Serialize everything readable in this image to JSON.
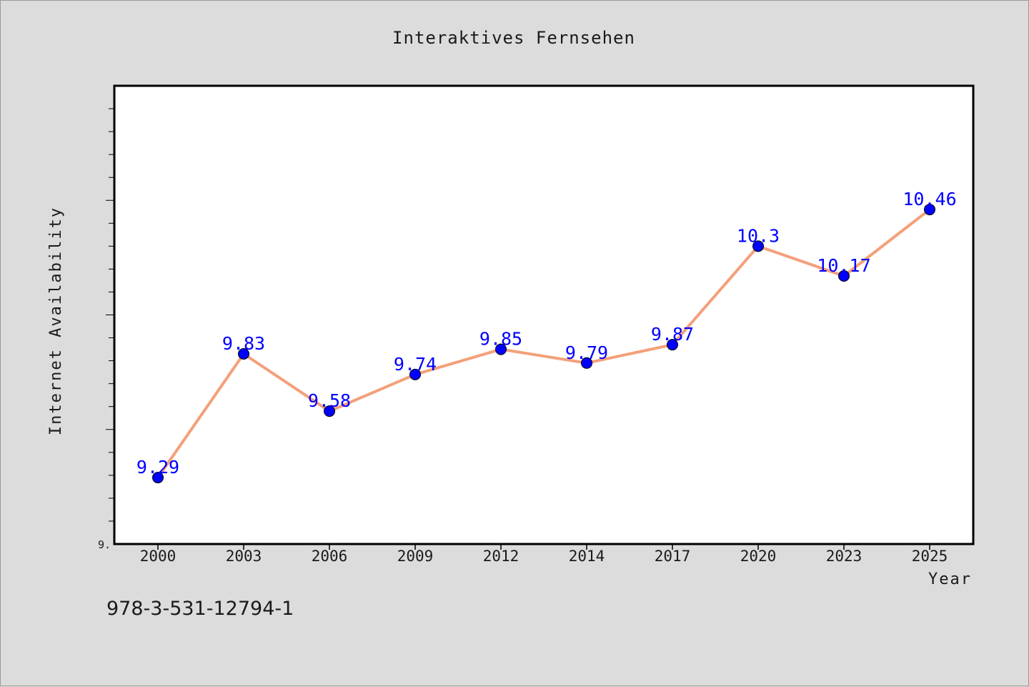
{
  "colors": {
    "background": "#dcdcdc",
    "plot_background": "#ffffff",
    "line": "#f4a07a",
    "marker": "#0000ff",
    "data_label": "#0000ff"
  },
  "footer": {
    "code": "978-3-531-12794-1"
  },
  "chart_data": {
    "type": "line",
    "title": "Interaktives Fernsehen",
    "xlabel": "Year",
    "ylabel": "Internet Availability",
    "categories": [
      "2000",
      "2003",
      "2006",
      "2009",
      "2012",
      "2014",
      "2017",
      "2020",
      "2023",
      "2025"
    ],
    "series": [
      {
        "values": [
          9.29,
          9.83,
          9.58,
          9.74,
          9.85,
          9.79,
          9.87,
          10.3,
          10.17,
          10.46
        ]
      }
    ],
    "data_labels": [
      "9.29",
      "9.83",
      "9.58",
      "9.74",
      "9.85",
      "9.79",
      "9.87",
      "10.3",
      "10.17",
      "10.46"
    ],
    "ylim": [
      9.0,
      11.0
    ],
    "ytick_label": "9.",
    "grid": false,
    "legend": "none"
  }
}
